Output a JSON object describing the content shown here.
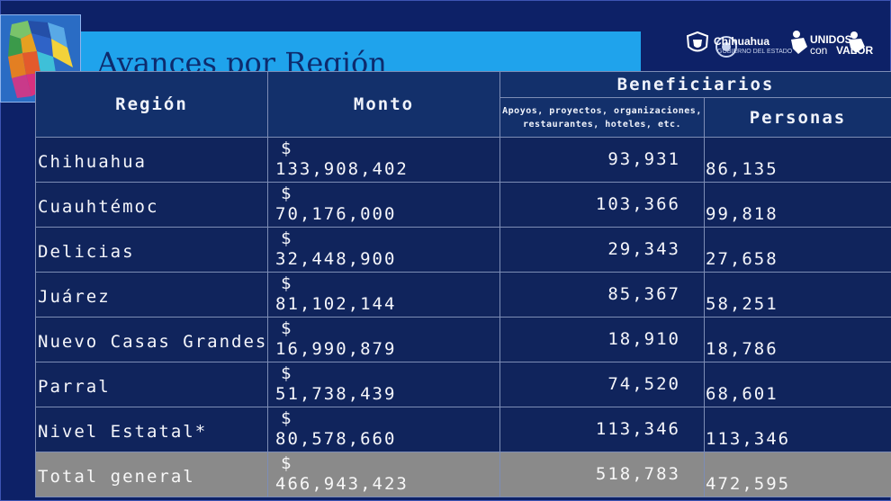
{
  "title": "Avances por Región",
  "logo": {
    "brand": "Chihuahua",
    "tagline": "GOBIERNO DEL ESTADO",
    "slogan_top": "UNIDOS",
    "slogan_mid": "con",
    "slogan_bottom": "VALOR"
  },
  "table": {
    "headers": {
      "region": "Región",
      "monto": "Monto",
      "beneficiarios": "Beneficiarios",
      "apoyos": "Apoyos, proyectos, organizaciones, restaurantes, hoteles, etc.",
      "personas": "Personas"
    },
    "rows": [
      {
        "region": "Chihuahua",
        "currency": "$",
        "monto": "133,908,402",
        "apoyos": "93,931",
        "personas": "86,135"
      },
      {
        "region": "Cuauhtémoc",
        "currency": "$",
        "monto": "70,176,000",
        "apoyos": "103,366",
        "personas": "99,818"
      },
      {
        "region": "Delicias",
        "currency": "$",
        "monto": "32,448,900",
        "apoyos": "29,343",
        "personas": "27,658"
      },
      {
        "region": "Juárez",
        "currency": "$",
        "monto": "81,102,144",
        "apoyos": "85,367",
        "personas": "58,251"
      },
      {
        "region": "Nuevo Casas Grandes",
        "currency": "$",
        "monto": "16,990,879",
        "apoyos": "18,910",
        "personas": "18,786"
      },
      {
        "region": "Parral",
        "currency": "$",
        "monto": "51,738,439",
        "apoyos": "74,520",
        "personas": "68,601"
      },
      {
        "region": "Nivel Estatal*",
        "currency": "$",
        "monto": "80,578,660",
        "apoyos": "113,346",
        "personas": "113,346"
      }
    ],
    "total": {
      "region": "Total general",
      "currency": "$",
      "monto": "466,943,423",
      "apoyos": "518,783",
      "personas": "472,595"
    }
  },
  "colors": {
    "background": "#0d2167",
    "title_bar": "#1fa3ec",
    "total_row": "#8a8a8a"
  }
}
